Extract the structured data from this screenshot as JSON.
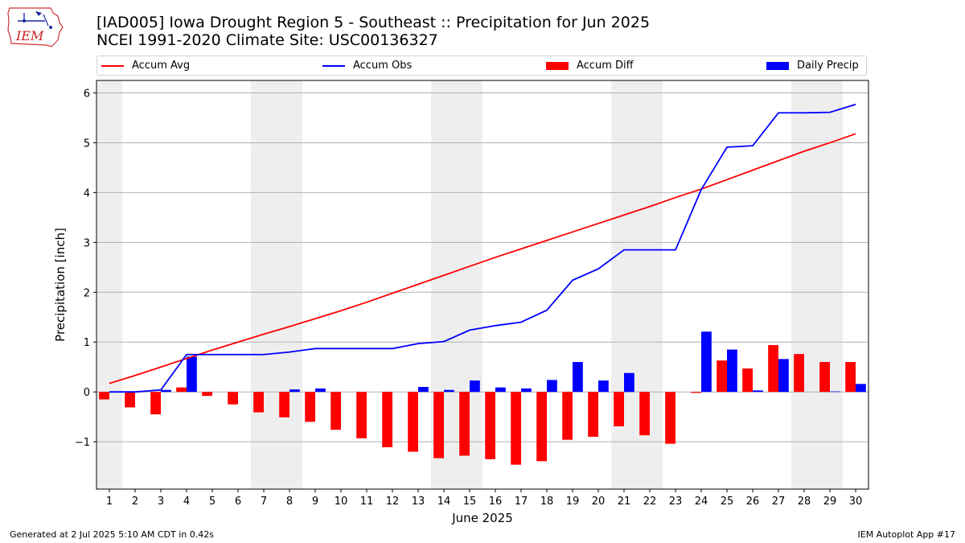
{
  "header": {
    "logo_text": "IEM",
    "title_line1": "[IAD005] Iowa Drought Region 5 - Southeast :: Precipitation for Jun 2025",
    "title_line2": "NCEI 1991-2020 Climate Site: USC00136327"
  },
  "legend": {
    "accum_avg": "Accum Avg",
    "accum_obs": "Accum Obs",
    "accum_diff": "Accum Diff",
    "daily_precip": "Daily Precip"
  },
  "colors": {
    "avg": "#ff0000",
    "obs": "#0000ff",
    "diff": "#ff0000",
    "daily": "#0000ff",
    "weekend_shade": "#eeeeee",
    "grid": "#b0b0b0"
  },
  "footer": {
    "generated": "Generated at 2 Jul 2025 5:10 AM CDT in 0.42s",
    "app": "IEM Autoplot App #17"
  },
  "chart_data": {
    "type": "bar",
    "title": "[IAD005] Iowa Drought Region 5 - Southeast :: Precipitation for Jun 2025",
    "subtitle": "NCEI 1991-2020 Climate Site: USC00136327",
    "xlabel": "June 2025",
    "ylabel": "Precipitation [inch]",
    "ylim": [
      -1.95,
      6.25
    ],
    "yticks": [
      -1,
      0,
      1,
      2,
      3,
      4,
      5,
      6
    ],
    "ytick_labels": [
      "−1",
      "0",
      "1",
      "2",
      "3",
      "4",
      "5",
      "6"
    ],
    "grid": "horizontal",
    "legend_position": "top",
    "categories": [
      "1",
      "2",
      "3",
      "4",
      "5",
      "6",
      "7",
      "8",
      "9",
      "10",
      "11",
      "12",
      "13",
      "14",
      "15",
      "16",
      "17",
      "18",
      "19",
      "20",
      "21",
      "22",
      "23",
      "24",
      "25",
      "26",
      "27",
      "28",
      "29",
      "30"
    ],
    "weekend_days": [
      1,
      7,
      8,
      14,
      15,
      21,
      22,
      28,
      29
    ],
    "series": [
      {
        "name": "Accum Avg",
        "kind": "line",
        "values": [
          0.17,
          0.33,
          0.5,
          0.67,
          0.84,
          1.0,
          1.16,
          1.31,
          1.47,
          1.63,
          1.8,
          1.98,
          2.16,
          2.34,
          2.52,
          2.7,
          2.87,
          3.04,
          3.21,
          3.38,
          3.55,
          3.72,
          3.9,
          4.07,
          4.26,
          4.45,
          4.64,
          4.83,
          5.0,
          5.18
        ]
      },
      {
        "name": "Accum Obs",
        "kind": "line",
        "values": [
          0.0,
          0.0,
          0.04,
          0.75,
          0.75,
          0.75,
          0.75,
          0.8,
          0.87,
          0.87,
          0.87,
          0.87,
          0.97,
          1.01,
          1.24,
          1.33,
          1.4,
          1.64,
          2.24,
          2.47,
          2.85,
          2.85,
          2.85,
          4.06,
          4.91,
          4.94,
          5.6,
          5.6,
          5.61,
          5.77
        ]
      },
      {
        "name": "Accum Diff",
        "kind": "bar",
        "values": [
          -0.15,
          -0.31,
          -0.45,
          0.09,
          -0.08,
          -0.25,
          -0.41,
          -0.51,
          -0.6,
          -0.76,
          -0.93,
          -1.11,
          -1.2,
          -1.33,
          -1.28,
          -1.35,
          -1.46,
          -1.39,
          -0.96,
          -0.9,
          -0.69,
          -0.87,
          -1.04,
          -0.02,
          0.63,
          0.47,
          0.94,
          0.76,
          0.6,
          0.6
        ]
      },
      {
        "name": "Daily Precip",
        "kind": "bar",
        "values": [
          0.0,
          0.0,
          0.04,
          0.71,
          0.0,
          0.0,
          0.0,
          0.05,
          0.07,
          0.0,
          0.0,
          0.0,
          0.1,
          0.04,
          0.23,
          0.09,
          0.07,
          0.24,
          0.6,
          0.23,
          0.38,
          0.0,
          0.0,
          1.21,
          0.85,
          0.03,
          0.66,
          0.0,
          0.01,
          0.16
        ]
      }
    ]
  }
}
